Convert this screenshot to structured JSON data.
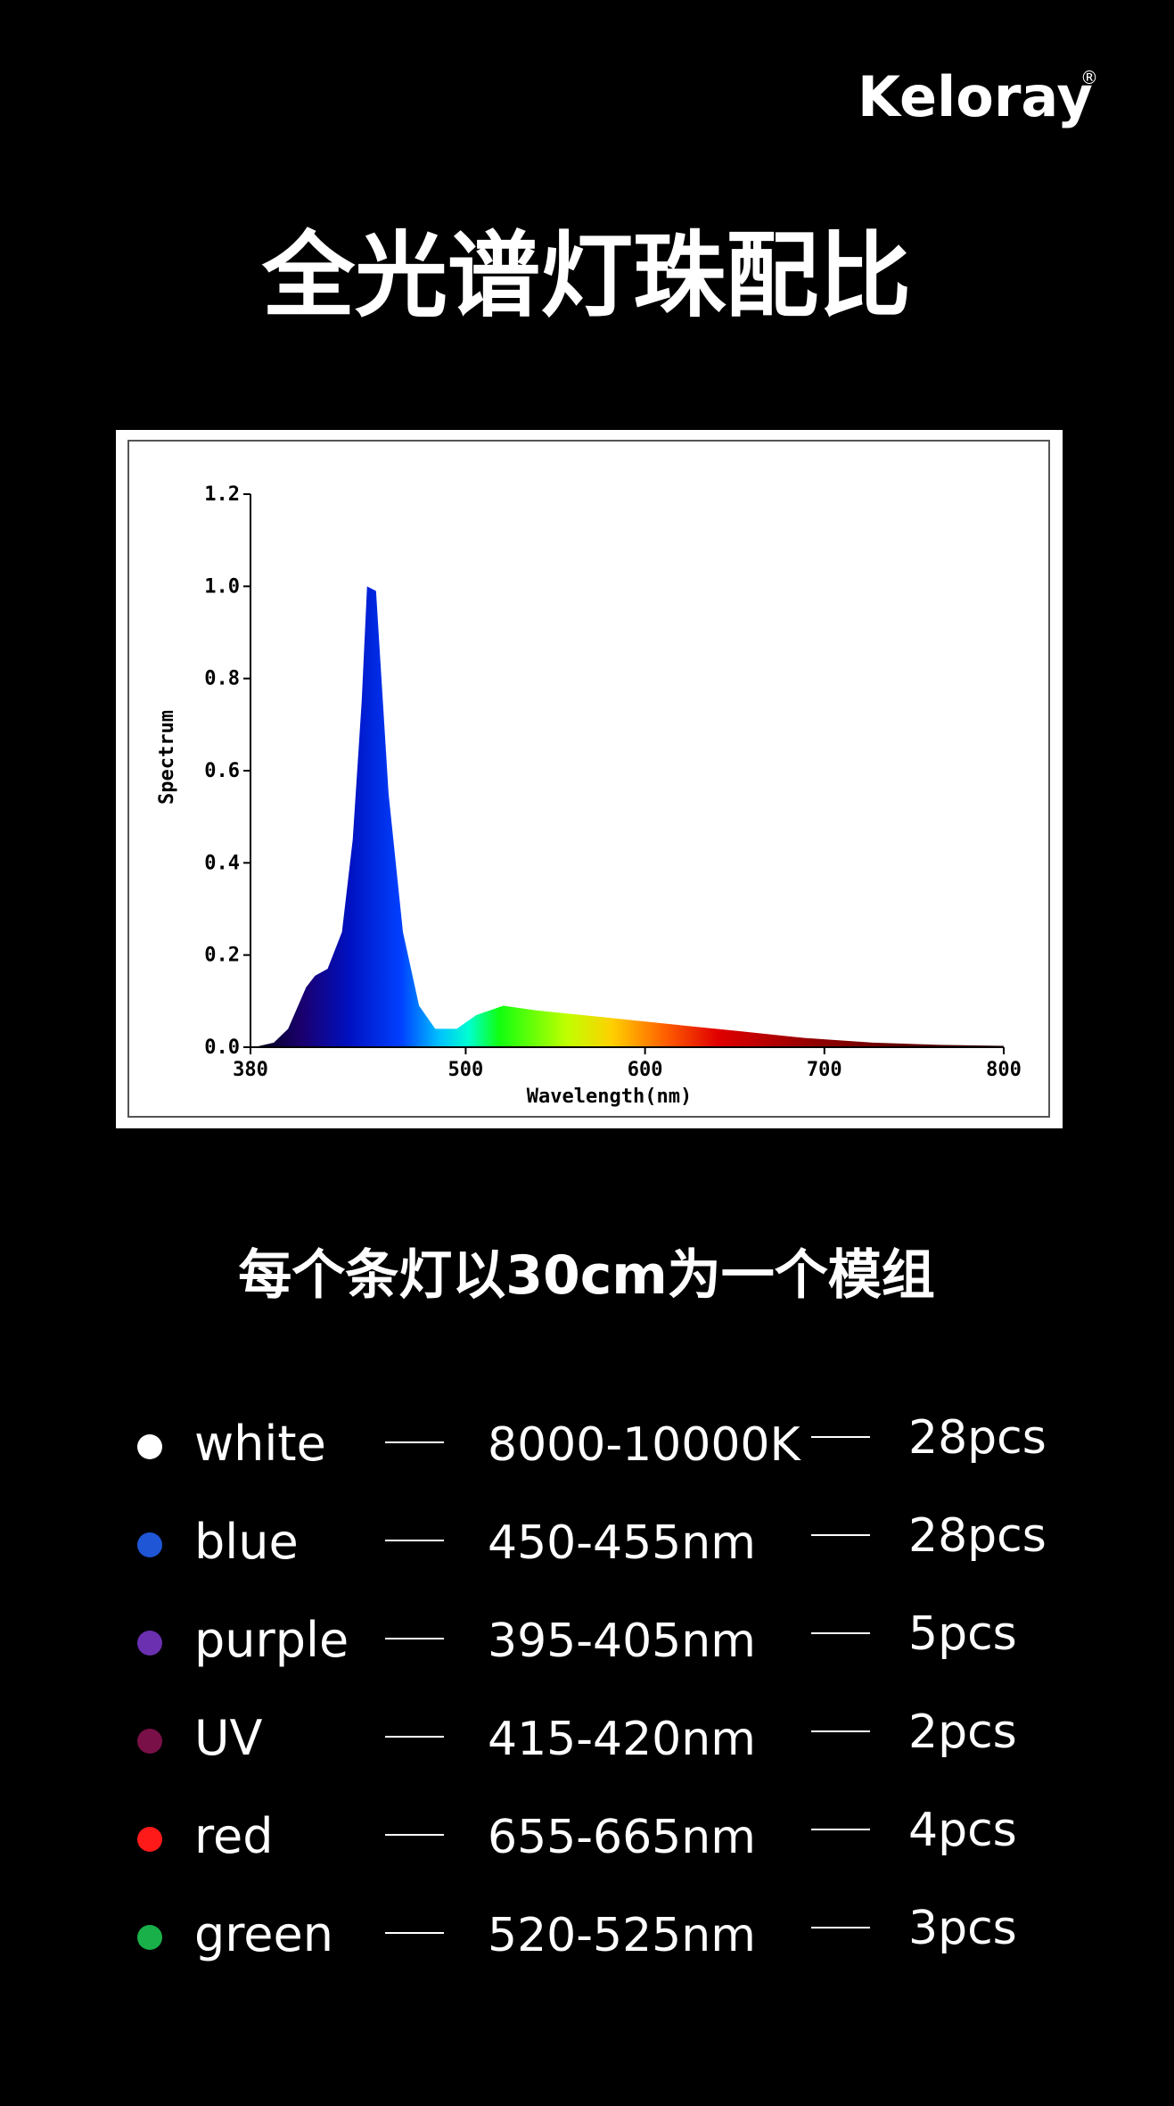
{
  "brand": "Keloray",
  "brand_mark": "®",
  "title": "全光谱灯珠配比",
  "chart_data": {
    "type": "area",
    "xlabel": "Wavelength(nm)",
    "ylabel": "Spectrum",
    "x": [
      382,
      393,
      401,
      411,
      416,
      423,
      431,
      437,
      442,
      445,
      450,
      457,
      465,
      474,
      483,
      495,
      506,
      521,
      539,
      577,
      614,
      652,
      689,
      727,
      764,
      800
    ],
    "values": [
      0,
      0.01,
      0.04,
      0.13,
      0.155,
      0.17,
      0.25,
      0.45,
      0.75,
      1.0,
      0.99,
      0.55,
      0.25,
      0.09,
      0.04,
      0.04,
      0.07,
      0.09,
      0.08,
      0.065,
      0.05,
      0.035,
      0.02,
      0.01,
      0.005,
      0.003
    ],
    "xlim": [
      380,
      800
    ],
    "xticks": [
      380,
      500,
      600,
      700,
      800
    ],
    "ylim": [
      0,
      1.2
    ],
    "yticks": [
      {
        "value": 0,
        "label": "0.0"
      },
      0.2,
      0.4,
      0.6,
      0.8,
      {
        "value": 1,
        "label": "1.0"
      },
      1.2
    ]
  },
  "subtitle": "每个条灯以30cm为一个模组",
  "rows": [
    {
      "name": "white",
      "range": "8000-10000K",
      "count": "28pcs",
      "color": "#ffffff"
    },
    {
      "name": "blue",
      "range": "450-455nm",
      "count": "28pcs",
      "color": "#1f56d6"
    },
    {
      "name": "purple",
      "range": "395-405nm",
      "count": "5pcs",
      "color": "#6a30b0"
    },
    {
      "name": "UV",
      "range": "415-420nm",
      "count": "2pcs",
      "color": "#7a1048"
    },
    {
      "name": "red",
      "range": "655-665nm",
      "count": "4pcs",
      "color": "#ff1a1a"
    },
    {
      "name": "green",
      "range": "520-525nm",
      "count": "3pcs",
      "color": "#19b04a"
    }
  ]
}
